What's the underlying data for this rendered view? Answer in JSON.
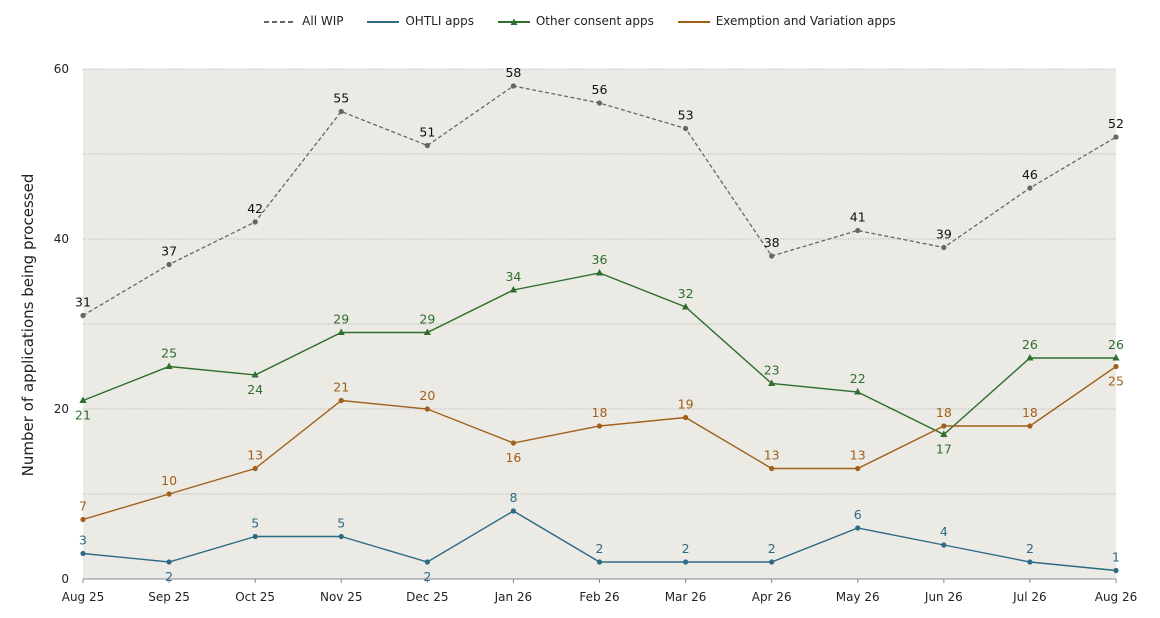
{
  "chart_data": {
    "type": "line",
    "title": "",
    "xlabel": "",
    "ylabel": "Number of applications being processed",
    "categories": [
      "Aug 25",
      "Sep 25",
      "Oct 25",
      "Nov 25",
      "Dec 25",
      "Jan 26",
      "Feb 26",
      "Mar 26",
      "Apr 26",
      "May 26",
      "Jun 26",
      "Jul 26",
      "Aug 26"
    ],
    "ylim": [
      0,
      60
    ],
    "yticks": [
      0,
      20,
      40,
      60
    ],
    "grid": true,
    "legend_position": "top",
    "series": [
      {
        "name": "All WIP",
        "color": "#666666",
        "dash": true,
        "marker": "circle",
        "values": [
          31,
          37,
          42,
          55,
          51,
          58,
          56,
          53,
          38,
          41,
          39,
          46,
          52
        ]
      },
      {
        "name": "OHTLI apps",
        "color": "#2e6a85",
        "dash": false,
        "marker": "circle",
        "values": [
          3,
          2,
          5,
          5,
          2,
          8,
          2,
          2,
          2,
          6,
          4,
          2,
          1
        ]
      },
      {
        "name": "Other consent apps",
        "color": "#2e6e2e",
        "dash": false,
        "marker": "triangle",
        "values": [
          21,
          25,
          24,
          29,
          29,
          34,
          36,
          32,
          23,
          22,
          17,
          26,
          26
        ]
      },
      {
        "name": "Exemption and Variation apps",
        "color": "#a0601a",
        "dash": false,
        "marker": "circle",
        "values": [
          7,
          10,
          13,
          21,
          20,
          16,
          18,
          19,
          13,
          13,
          18,
          18,
          25
        ]
      }
    ]
  }
}
